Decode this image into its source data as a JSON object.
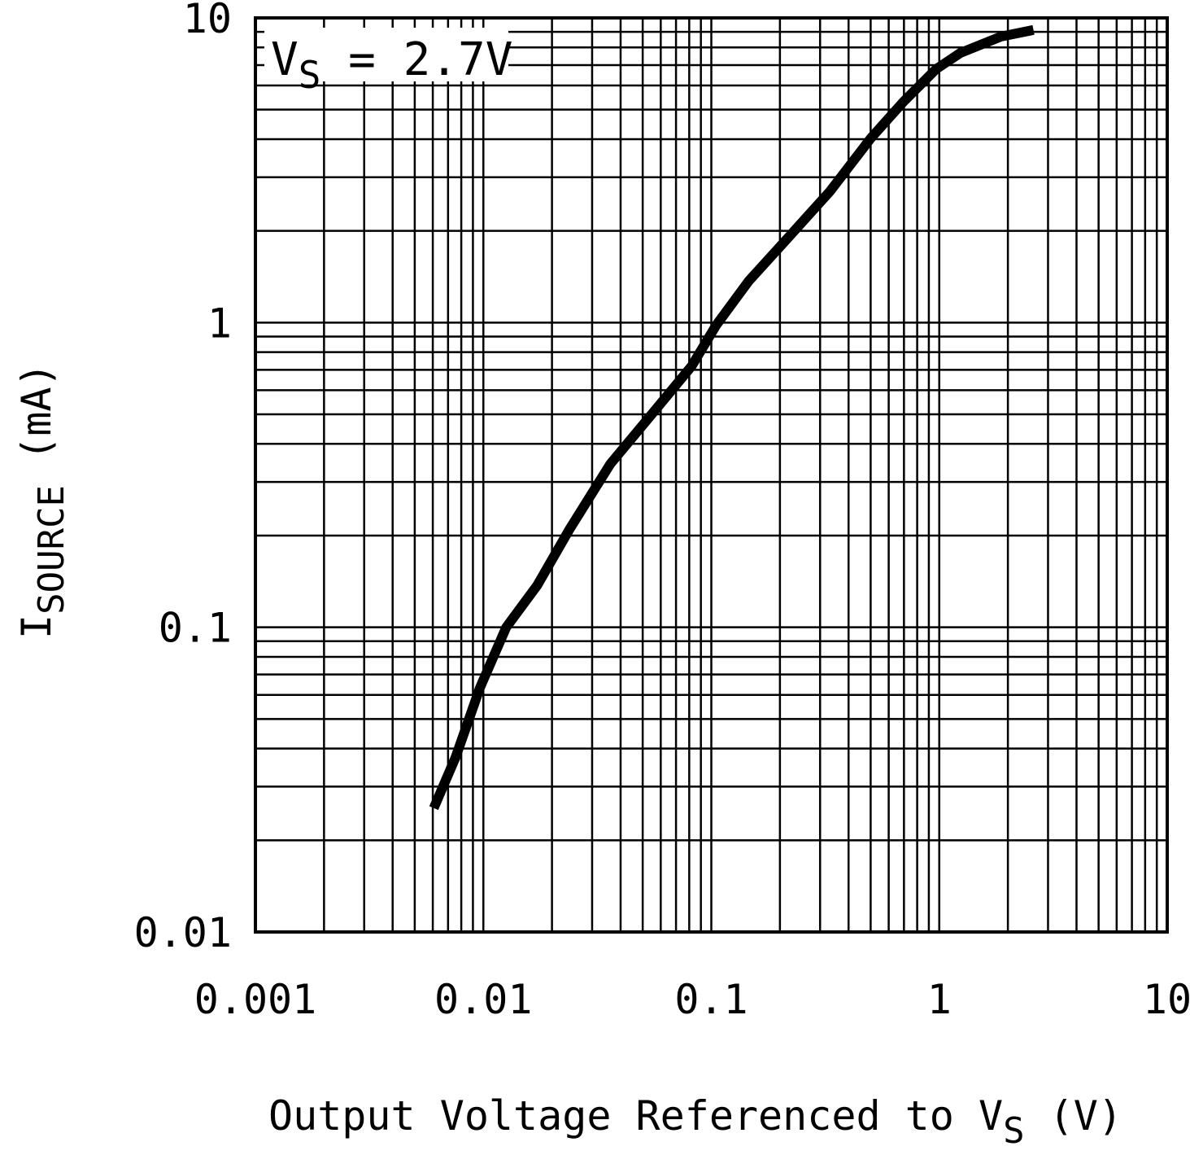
{
  "chart_data": {
    "type": "line",
    "annotation": [
      "V",
      "S",
      " = 2.7V"
    ],
    "x_label": [
      "Output Voltage Referenced to V",
      "S",
      " (V)"
    ],
    "y_label": [
      "I",
      "SOURCE",
      " (mA)"
    ],
    "log_x": true,
    "log_y": true,
    "grid": true,
    "xlim": [
      0.001,
      10
    ],
    "ylim": [
      0.01,
      10
    ],
    "xticks": [
      0.001,
      0.01,
      0.1,
      1,
      10
    ],
    "yticks": [
      0.01,
      0.1,
      1,
      10
    ],
    "minor_xticks": [
      0.002,
      0.003,
      0.004,
      0.005,
      0.006,
      0.007,
      0.008,
      0.009,
      0.02,
      0.03,
      0.04,
      0.05,
      0.06,
      0.07,
      0.08,
      0.09,
      0.2,
      0.3,
      0.4,
      0.5,
      0.6,
      0.7,
      0.8,
      0.9,
      2,
      3,
      4,
      5,
      6,
      7,
      8,
      9
    ],
    "minor_yticks": [
      0.02,
      0.03,
      0.04,
      0.05,
      0.06,
      0.07,
      0.08,
      0.09,
      0.2,
      0.3,
      0.4,
      0.5,
      0.6,
      0.7,
      0.8,
      0.9,
      2,
      3,
      4,
      5,
      6,
      7,
      8,
      9
    ],
    "series": [
      {
        "color": "#000000",
        "x": [
          0.00606,
          0.00756,
          0.00966,
          0.0126,
          0.0172,
          0.0239,
          0.0361,
          0.0544,
          0.082,
          0.105,
          0.146,
          0.22,
          0.332,
          0.501,
          0.697,
          0.968,
          1.24,
          1.87,
          2.59
        ],
        "values": [
          0.0255,
          0.0375,
          0.0633,
          0.1,
          0.137,
          0.21,
          0.344,
          0.497,
          0.72,
          0.98,
          1.37,
          1.92,
          2.7,
          4.03,
          5.31,
          6.79,
          7.68,
          8.69,
          9.13
        ]
      }
    ]
  }
}
